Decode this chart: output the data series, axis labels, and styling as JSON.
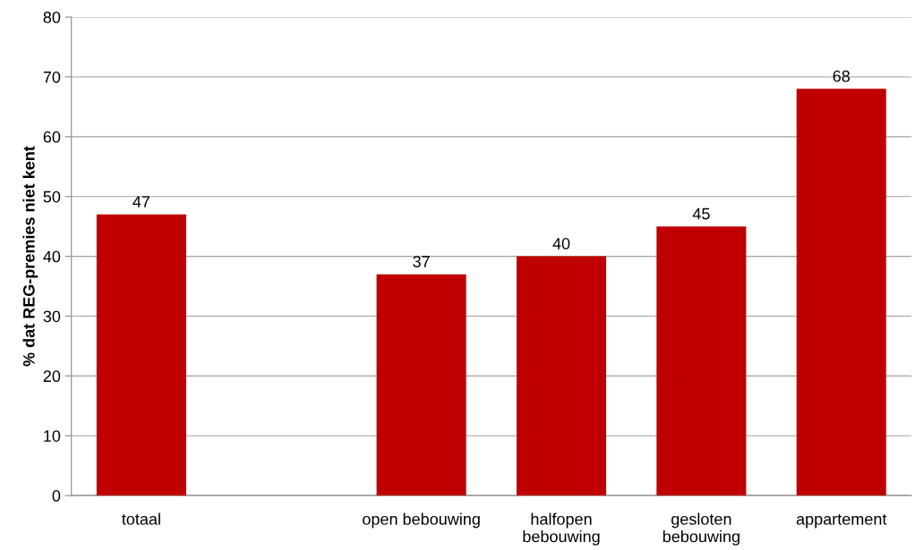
{
  "chart_data": {
    "type": "bar",
    "ylabel": "% dat REG-premies niet kent",
    "categories": [
      "totaal",
      null,
      "open bebouwing",
      "halfopen\nbebouwing",
      "gesloten\nbebouwing",
      "appartement"
    ],
    "values": [
      47,
      null,
      37,
      40,
      45,
      68
    ],
    "color": "#c00000",
    "ylim": [
      0,
      80
    ],
    "yticks": [
      0,
      10,
      20,
      30,
      40,
      50,
      60,
      70,
      80
    ],
    "grid": "y",
    "data_labels": true
  }
}
